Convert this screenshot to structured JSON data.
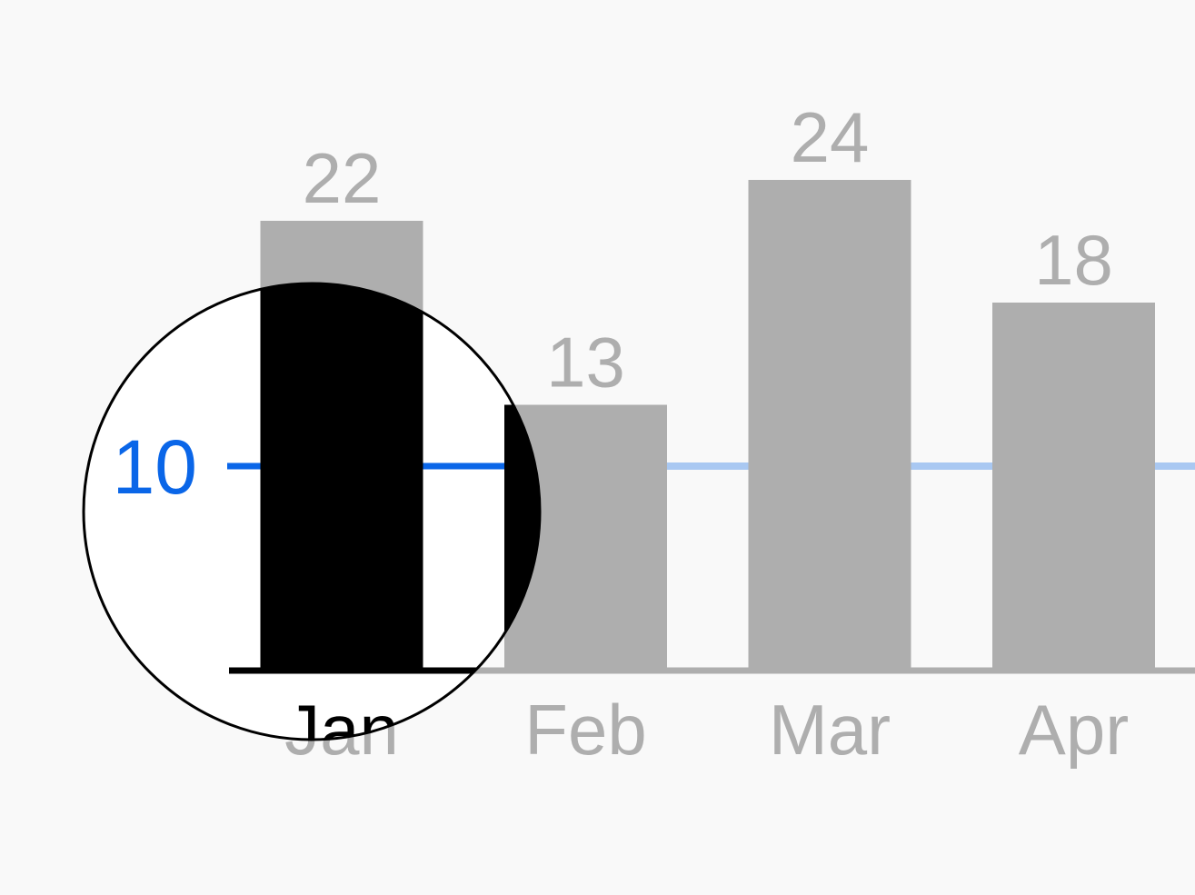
{
  "chart_data": {
    "type": "bar",
    "categories": [
      "Jan",
      "Feb",
      "Mar",
      "Apr"
    ],
    "values": [
      22,
      13,
      24,
      18
    ],
    "ylim": [
      0,
      24
    ],
    "reference_line": {
      "value": 10,
      "label": "10",
      "color": "#0a66e8"
    },
    "bar_color": "#aeaeae",
    "text_color": "#aeaeae",
    "magnifier": {
      "focus_category": "Jan",
      "highlight_color": "#000000",
      "lens_background": "#ffffff"
    },
    "grid": false,
    "legend": "none"
  },
  "colors": {
    "page_background": "#f9f9f9",
    "axis": "#aeaeae",
    "reference_line_faded": "#a9c8f2"
  }
}
